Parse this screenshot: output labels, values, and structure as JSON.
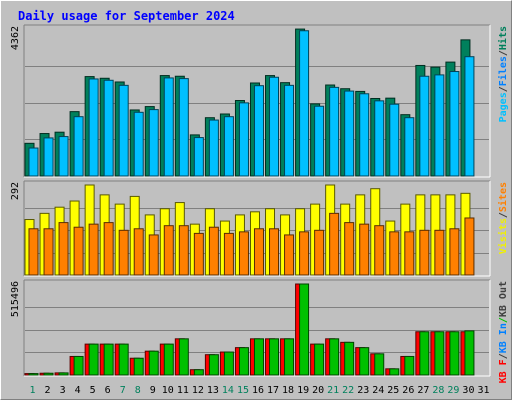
{
  "chart_data": {
    "type": "bar",
    "title": "Daily usage for September 2024",
    "x": [
      "1",
      "2",
      "3",
      "4",
      "5",
      "6",
      "7",
      "8",
      "9",
      "10",
      "11",
      "12",
      "13",
      "14",
      "15",
      "16",
      "17",
      "18",
      "19",
      "20",
      "21",
      "22",
      "23",
      "24",
      "25",
      "26",
      "27",
      "28",
      "29",
      "30",
      "31"
    ],
    "weekend_days": [
      1,
      7,
      8,
      14,
      15,
      21,
      22,
      28,
      29
    ],
    "panels": [
      {
        "id": "top",
        "ymax_label": "4362",
        "ymax": 4362,
        "legend": [
          "Pages",
          "/",
          "Files",
          "/",
          "Hits"
        ],
        "legend_colors": [
          "#00c0ff",
          "#404040",
          "#0080ff",
          "#404040",
          "#00805c"
        ],
        "series": [
          {
            "name": "Hits",
            "color": "#00805c",
            "values": [
              970,
              1260,
              1300,
              1910,
              2950,
              2900,
              2790,
              1960,
              2060,
              2980,
              2960,
              1220,
              1730,
              1840,
              2240,
              2760,
              2980,
              2770,
              4360,
              2140,
              2700,
              2590,
              2510,
              2300,
              2310,
              1820,
              3280,
              3230,
              3380,
              4040,
              null
            ]
          },
          {
            "name": "Pages",
            "color": "#00c0ff",
            "values": [
              830,
              1130,
              1170,
              1760,
              2880,
              2840,
              2690,
              1890,
              1970,
              2910,
              2890,
              1140,
              1660,
              1760,
              2170,
              2680,
              2930,
              2690,
              4310,
              2070,
              2630,
              2520,
              2440,
              2230,
              2130,
              1730,
              2960,
              3000,
              3100,
              3540,
              null
            ]
          }
        ]
      },
      {
        "id": "middle",
        "ymax_label": "292",
        "ymax": 292,
        "legend": [
          "Visits",
          "/",
          "Sites"
        ],
        "legend_colors": [
          "#f0f000",
          "#404040",
          "#ff8000"
        ],
        "series": [
          {
            "name": "Visits",
            "color": "#ffff00",
            "values": [
              180,
              200,
              220,
              240,
              292,
              260,
              230,
              255,
              195,
              215,
              235,
              165,
              215,
              175,
              195,
              205,
              215,
              195,
              215,
              230,
              292,
              230,
              260,
              280,
              175,
              230,
              260,
              260,
              260,
              265,
              null
            ]
          },
          {
            "name": "Sites",
            "color": "#ff8000",
            "values": [
              150,
              150,
              170,
              155,
              165,
              170,
              145,
              150,
              130,
              160,
              160,
              135,
              155,
              135,
              140,
              150,
              150,
              130,
              140,
              145,
              200,
              170,
              165,
              160,
              140,
              140,
              145,
              145,
              150,
              185,
              null
            ]
          }
        ]
      },
      {
        "id": "bottom",
        "ymax_label": "515496",
        "ymax": 515496,
        "legend": [
          "KB F",
          "/",
          "KB In",
          "/",
          "KB Out"
        ],
        "legend_colors": [
          "#ff0000",
          "#404040",
          "#0080ff",
          "#00c000"
        ],
        "series": [
          {
            "name": "KB F",
            "color": "#ff0000",
            "values": [
              8000,
              10000,
              12000,
              105000,
              175000,
              175000,
              175000,
              95000,
              135000,
              175000,
              205000,
              30000,
              115000,
              130000,
              155000,
              205000,
              205000,
              205000,
              515496,
              175000,
              205000,
              185000,
              155000,
              120000,
              35000,
              105000,
              245000,
              245000,
              245000,
              245000,
              null
            ]
          },
          {
            "name": "KB Out",
            "color": "#00c000",
            "values": [
              8000,
              10000,
              12000,
              105000,
              175000,
              175000,
              175000,
              95000,
              135000,
              175000,
              205000,
              30000,
              115000,
              130000,
              155000,
              205000,
              205000,
              205000,
              515496,
              175000,
              205000,
              185000,
              155000,
              120000,
              35000,
              105000,
              245000,
              245000,
              245000,
              250000,
              null
            ]
          }
        ]
      }
    ],
    "grid": true
  }
}
